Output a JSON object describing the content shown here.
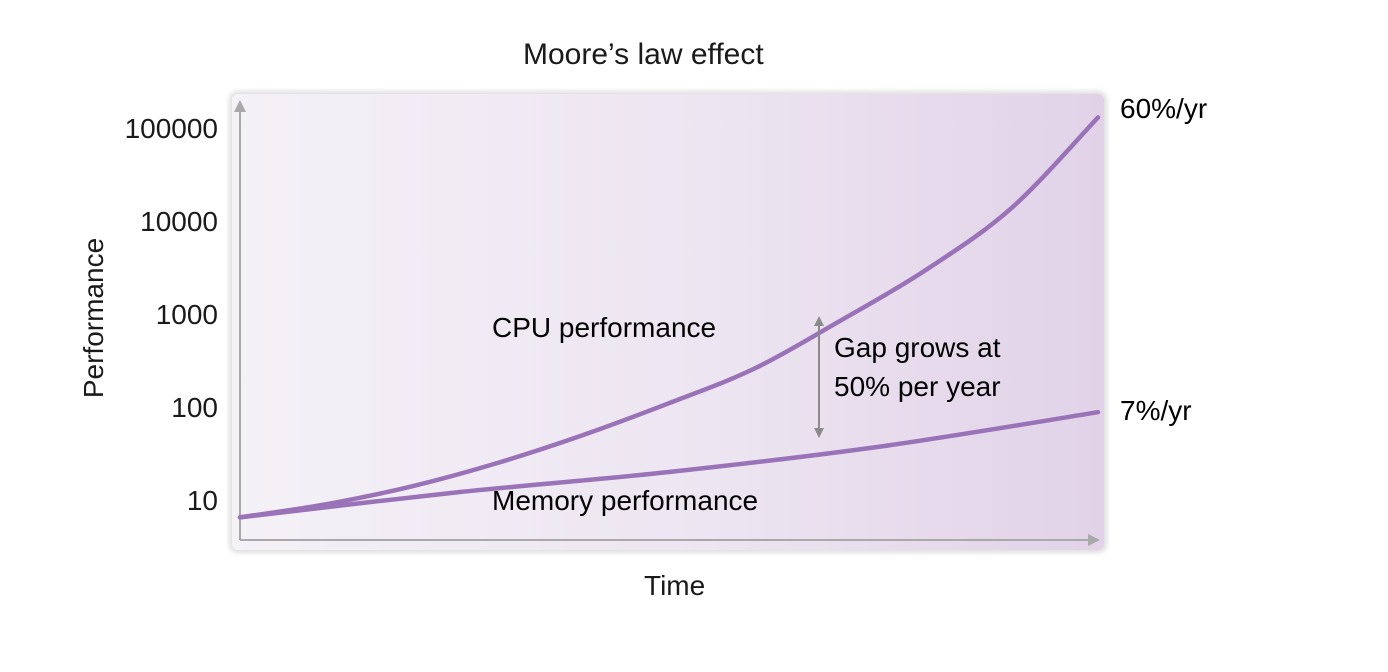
{
  "chart_data": {
    "type": "line",
    "title": "Moore’s law effect",
    "xlabel": "Time",
    "ylabel": "Performance",
    "y_scale": "log",
    "ylim": [
      5,
      150000
    ],
    "y_ticks": [
      "100000",
      "10000",
      "1000",
      "100",
      "10"
    ],
    "y_tick_values": [
      100000,
      10000,
      1000,
      100,
      10
    ],
    "series": [
      {
        "name": "CPU performance",
        "growth_label": "60%/yr",
        "color": "#9a72b8",
        "x": [
          0,
          0.1,
          0.2,
          0.3,
          0.4,
          0.5,
          0.6,
          0.7,
          0.8,
          0.9,
          1.0
        ],
        "values": [
          6.5,
          9,
          14,
          25,
          50,
          110,
          260,
          850,
          3000,
          14000,
          130000
        ]
      },
      {
        "name": "Memory performance",
        "growth_label": "7%/yr",
        "color": "#9a72b8",
        "x": [
          0,
          0.25,
          0.5,
          0.75,
          1.0
        ],
        "values": [
          6.5,
          12,
          20,
          38,
          88
        ]
      }
    ],
    "annotations": [
      {
        "text_line1": "Gap grows at",
        "text_line2": "50% per year"
      }
    ]
  }
}
